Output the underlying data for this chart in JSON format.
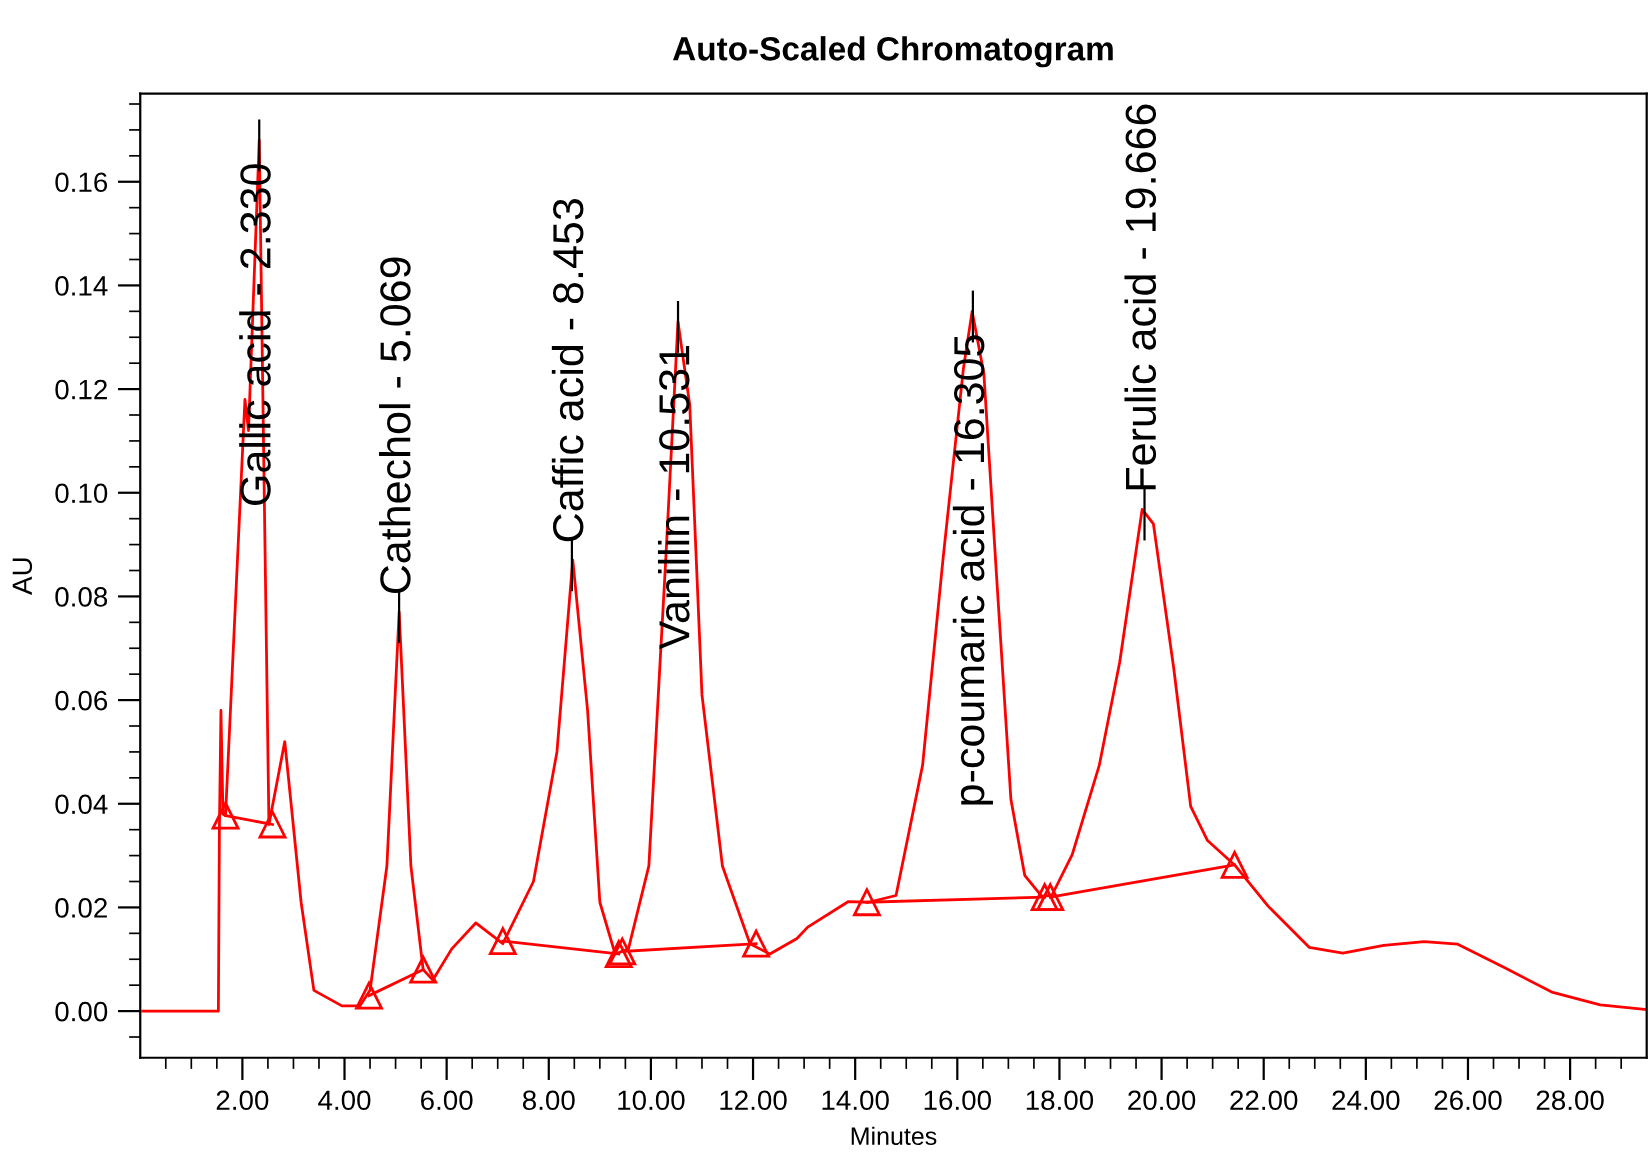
{
  "chart_data": {
    "type": "line",
    "title": "Auto-Scaled Chromatogram",
    "xlabel": "Minutes",
    "ylabel": "AU",
    "xlim": [
      0,
      29.5
    ],
    "ylim": [
      -0.009,
      0.177
    ],
    "xticks": [
      {
        "value": 0.5,
        "label": null
      },
      {
        "value": 1,
        "label": null
      },
      {
        "value": 1.5,
        "label": null
      },
      {
        "value": 2,
        "label": "2.00"
      },
      {
        "value": 2.5,
        "label": null
      },
      {
        "value": 3,
        "label": null
      },
      {
        "value": 3.5,
        "label": null
      },
      {
        "value": 4,
        "label": "4.00"
      },
      {
        "value": 4.5,
        "label": null
      },
      {
        "value": 5,
        "label": null
      },
      {
        "value": 5.5,
        "label": null
      },
      {
        "value": 6,
        "label": "6.00"
      },
      {
        "value": 6.5,
        "label": null
      },
      {
        "value": 7,
        "label": null
      },
      {
        "value": 7.5,
        "label": null
      },
      {
        "value": 8,
        "label": "8.00"
      },
      {
        "value": 8.5,
        "label": null
      },
      {
        "value": 9,
        "label": null
      },
      {
        "value": 9.5,
        "label": null
      },
      {
        "value": 10,
        "label": "10.00"
      },
      {
        "value": 10.5,
        "label": null
      },
      {
        "value": 11,
        "label": null
      },
      {
        "value": 11.5,
        "label": null
      },
      {
        "value": 12,
        "label": "12.00"
      },
      {
        "value": 12.5,
        "label": null
      },
      {
        "value": 13,
        "label": null
      },
      {
        "value": 13.5,
        "label": null
      },
      {
        "value": 14,
        "label": "14.00"
      },
      {
        "value": 14.5,
        "label": null
      },
      {
        "value": 15,
        "label": null
      },
      {
        "value": 15.5,
        "label": null
      },
      {
        "value": 16,
        "label": "16.00"
      },
      {
        "value": 16.5,
        "label": null
      },
      {
        "value": 17,
        "label": null
      },
      {
        "value": 17.5,
        "label": null
      },
      {
        "value": 18,
        "label": "18.00"
      },
      {
        "value": 18.5,
        "label": null
      },
      {
        "value": 19,
        "label": null
      },
      {
        "value": 19.5,
        "label": null
      },
      {
        "value": 20,
        "label": "20.00"
      },
      {
        "value": 20.5,
        "label": null
      },
      {
        "value": 21,
        "label": null
      },
      {
        "value": 21.5,
        "label": null
      },
      {
        "value": 22,
        "label": "22.00"
      },
      {
        "value": 22.5,
        "label": null
      },
      {
        "value": 23,
        "label": null
      },
      {
        "value": 23.5,
        "label": null
      },
      {
        "value": 24,
        "label": "24.00"
      },
      {
        "value": 24.5,
        "label": null
      },
      {
        "value": 25,
        "label": null
      },
      {
        "value": 25.5,
        "label": null
      },
      {
        "value": 26,
        "label": "26.00"
      },
      {
        "value": 26.5,
        "label": null
      },
      {
        "value": 27,
        "label": null
      },
      {
        "value": 27.5,
        "label": null
      },
      {
        "value": 28,
        "label": "28.00"
      },
      {
        "value": 28.5,
        "label": null
      },
      {
        "value": 29,
        "label": null
      }
    ],
    "yticks": [
      {
        "value": -0.005,
        "label": null
      },
      {
        "value": 0,
        "label": "0.00"
      },
      {
        "value": 0.005,
        "label": null
      },
      {
        "value": 0.01,
        "label": null
      },
      {
        "value": 0.015,
        "label": null
      },
      {
        "value": 0.02,
        "label": "0.02"
      },
      {
        "value": 0.025,
        "label": null
      },
      {
        "value": 0.03,
        "label": null
      },
      {
        "value": 0.035,
        "label": null
      },
      {
        "value": 0.04,
        "label": "0.04"
      },
      {
        "value": 0.045,
        "label": null
      },
      {
        "value": 0.05,
        "label": null
      },
      {
        "value": 0.055,
        "label": null
      },
      {
        "value": 0.06,
        "label": "0.06"
      },
      {
        "value": 0.065,
        "label": null
      },
      {
        "value": 0.07,
        "label": null
      },
      {
        "value": 0.075,
        "label": null
      },
      {
        "value": 0.08,
        "label": "0.08"
      },
      {
        "value": 0.085,
        "label": null
      },
      {
        "value": 0.09,
        "label": null
      },
      {
        "value": 0.095,
        "label": null
      },
      {
        "value": 0.1,
        "label": "0.10"
      },
      {
        "value": 0.105,
        "label": null
      },
      {
        "value": 0.11,
        "label": null
      },
      {
        "value": 0.115,
        "label": null
      },
      {
        "value": 0.12,
        "label": "0.12"
      },
      {
        "value": 0.125,
        "label": null
      },
      {
        "value": 0.13,
        "label": null
      },
      {
        "value": 0.135,
        "label": null
      },
      {
        "value": 0.14,
        "label": "0.14"
      },
      {
        "value": 0.145,
        "label": null
      },
      {
        "value": 0.15,
        "label": null
      },
      {
        "value": 0.155,
        "label": null
      },
      {
        "value": 0.16,
        "label": "0.16"
      },
      {
        "value": 0.165,
        "label": null
      },
      {
        "value": 0.17,
        "label": null
      },
      {
        "value": 0.175,
        "label": null
      }
    ],
    "grid": false,
    "legend": false,
    "series": [
      {
        "color": "#ff0000",
        "marker": "none",
        "x": [
          0.05,
          1.53,
          1.55,
          1.58,
          1.62,
          1.67,
          2.05,
          2.12,
          2.33,
          2.52,
          2.83,
          3.15,
          3.4,
          3.95,
          4.3,
          4.5,
          4.83,
          5.07,
          5.3,
          5.54,
          5.73,
          6.1,
          6.57,
          7.1,
          7.7,
          8.16,
          8.47,
          8.76,
          9.0,
          9.3,
          9.56,
          9.96,
          10.29,
          10.53,
          10.76,
          11.0,
          11.4,
          11.94,
          12.33,
          12.86,
          13.07,
          13.86,
          14.26,
          14.8,
          15.32,
          15.72,
          16.12,
          16.29,
          16.52,
          16.79,
          17.05,
          17.32,
          17.65,
          17.85,
          18.25,
          18.78,
          19.18,
          19.62,
          19.84,
          20.24,
          20.57,
          20.9,
          21.43,
          22.09,
          22.89,
          23.55,
          24.35,
          25.14,
          25.8,
          26.73,
          27.66,
          28.59,
          29.49
        ],
        "values": [
          0,
          0,
          0.035,
          0.058,
          0.038,
          0.0377,
          0.118,
          0.112,
          0.168,
          0.036,
          0.052,
          0.021,
          0.004,
          0.001,
          0.001,
          0.004,
          0.028,
          0.077,
          0.028,
          0.008,
          0.006,
          0.012,
          0.017,
          0.013,
          0.025,
          0.05,
          0.087,
          0.058,
          0.021,
          0.011,
          0.012,
          0.028,
          0.087,
          0.133,
          0.117,
          0.061,
          0.028,
          0.013,
          0.011,
          0.014,
          0.0162,
          0.0211,
          0.021,
          0.0223,
          0.0474,
          0.0872,
          0.124,
          0.135,
          0.123,
          0.0806,
          0.0408,
          0.0262,
          0.0222,
          0.0223,
          0.0302,
          0.0474,
          0.0673,
          0.0968,
          0.094,
          0.066,
          0.0395,
          0.0329,
          0.0282,
          0.0202,
          0.0123,
          0.0112,
          0.0127,
          0.0134,
          0.0129,
          0.0083,
          0.0036,
          0.0012,
          0.0003
        ]
      },
      {
        "color": "#ff0000",
        "marker": "none",
        "x": [
          1.67,
          2.59
        ],
        "values": [
          0.0377,
          0.036
        ]
      },
      {
        "color": "#ff0000",
        "marker": "none",
        "x": [
          4.48,
          5.54
        ],
        "values": [
          0.003,
          0.008
        ]
      },
      {
        "color": "#ff0000",
        "marker": "none",
        "x": [
          7.1,
          9.37
        ],
        "values": [
          0.0135,
          0.011
        ]
      },
      {
        "color": "#ff0000",
        "marker": "none",
        "x": [
          9.44,
          12.06
        ],
        "values": [
          0.0115,
          0.013
        ]
      },
      {
        "color": "#ff0000",
        "marker": "none",
        "x": [
          14.23,
          17.71
        ],
        "values": [
          0.021,
          0.022
        ]
      },
      {
        "color": "#ff0000",
        "marker": "none",
        "x": [
          17.82,
          21.43
        ],
        "values": [
          0.022,
          0.0282
        ]
      },
      {
        "type": "scatter",
        "color": "#ff0000",
        "marker": "triangle",
        "x": [
          1.67,
          2.59,
          4.48,
          5.54,
          7.1,
          9.37,
          9.44,
          12.06,
          14.23,
          17.71,
          17.82,
          21.43
        ],
        "values": [
          0.0377,
          0.036,
          0.003,
          0.008,
          0.0135,
          0.011,
          0.0115,
          0.013,
          0.021,
          0.022,
          0.022,
          0.0282
        ]
      }
    ],
    "annotations": [
      {
        "text": "Gallic acid - 2.330",
        "x": 2.33,
        "y": 0.168
      },
      {
        "text": "Cathechol - 5.069",
        "x": 5.069,
        "y": 0.077
      },
      {
        "text": "Caffic acid - 8.453",
        "x": 8.453,
        "y": 0.087
      },
      {
        "text": "Vanillin - 10.531",
        "x": 10.531,
        "y": 0.133
      },
      {
        "text": "p-coumaric acid - 16.305",
        "x": 16.305,
        "y": 0.135
      },
      {
        "text": "Ferulic acid - 19.666",
        "x": 19.666,
        "y": 0.0968
      }
    ]
  }
}
